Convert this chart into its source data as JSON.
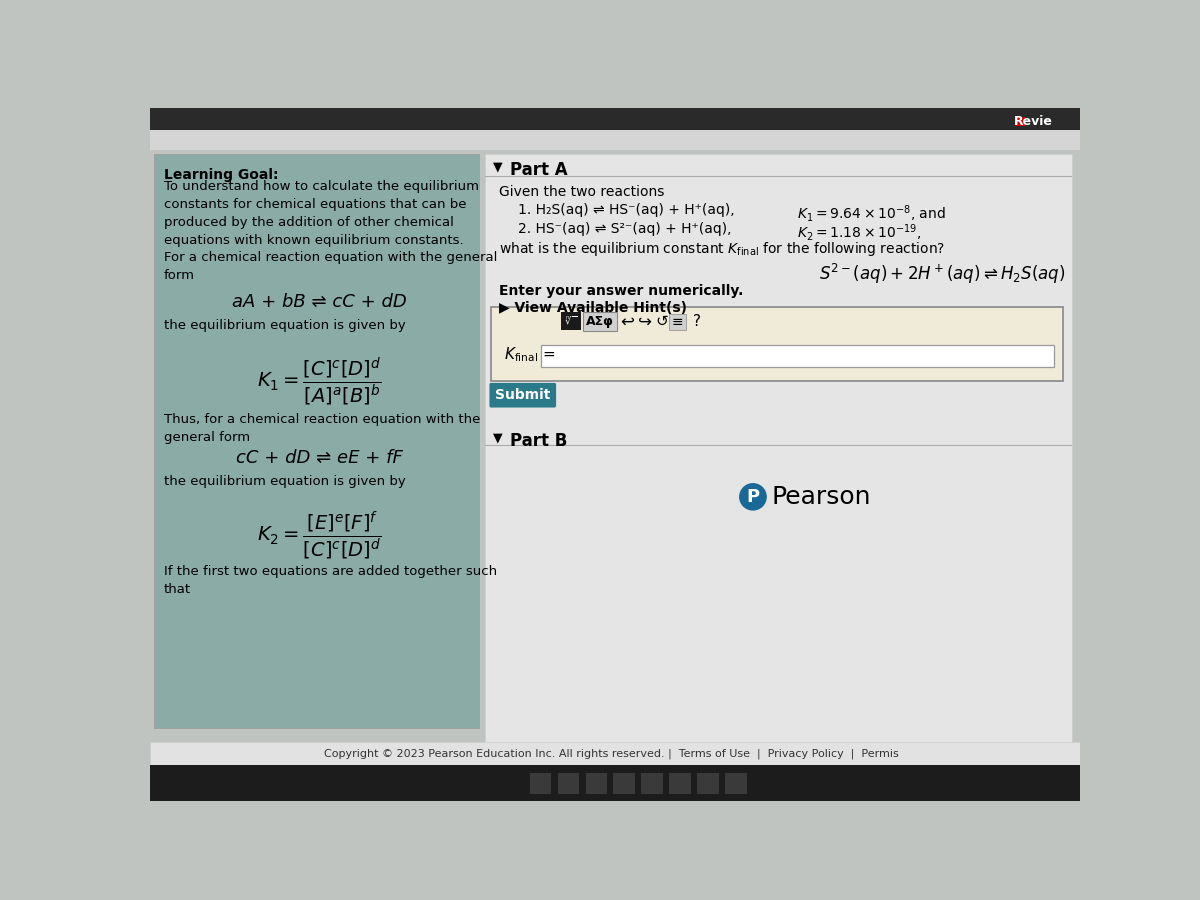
{
  "page_bg": "#c0c4c0",
  "left_panel_color": "#8aaba6",
  "right_panel_color": "#e5e5e5",
  "learning_goal_title": "Learning Goal:",
  "learning_goal_text": "To understand how to calculate the equilibrium\nconstants for chemical equations that can be\nproduced by the addition of other chemical\nequations with known equilibrium constants.",
  "for_chemical_text": "For a chemical reaction equation with the general\nform",
  "eq1": "aA + bB ⇌ cC + dD",
  "equil_text1": "the equilibrium equation is given by",
  "K1_formula": "$K_1 = \\dfrac{[C]^c[D]^d}{[A]^a[B]^b}$",
  "thus_text": "Thus, for a chemical reaction equation with the\ngeneral form",
  "eq2": "cC + dD ⇌ eE + fF",
  "equil_text2": "the equilibrium equation is given by",
  "K2_formula": "$K_2 = \\dfrac{[E]^e[F]^f}{[C]^c[D]^d}$",
  "added_text": "If the first two equations are added together such\nthat",
  "part_a_label": "Part A",
  "given_text": "Given the two reactions",
  "reaction1_plain": "1. H₂S(aq) ⇌ HS⁻(aq) + H⁺(aq),",
  "reaction1_K": "$K_1 = 9.64\\times10^{-8}$, and",
  "reaction2_plain": "2. HS⁻(aq) ⇌ S²⁻(aq) + H⁺(aq),",
  "reaction2_K": "$K_2 = 1.18\\times10^{-19}$,",
  "question_text": "what is the equilibrium constant $K_{\\mathrm{final}}$ for the following reaction?",
  "final_reaction": "$S^{2-}(aq) + 2H^+(aq) \\rightleftharpoons H_2S(aq)$",
  "enter_text": "Enter your answer numerically.",
  "hint_text": "▶ View Available Hint(s)",
  "submit_label": "Submit",
  "submit_color": "#2a7a8a",
  "part_b_label": "Part B",
  "pearson_text": "Pearson",
  "copyright_text": "Copyright © 2023 Pearson Education Inc. All rights reserved. |  Terms of Use  |  Privacy Policy  |  Permis",
  "revie_text": "Revie",
  "toolbar_label": "AΣφ"
}
